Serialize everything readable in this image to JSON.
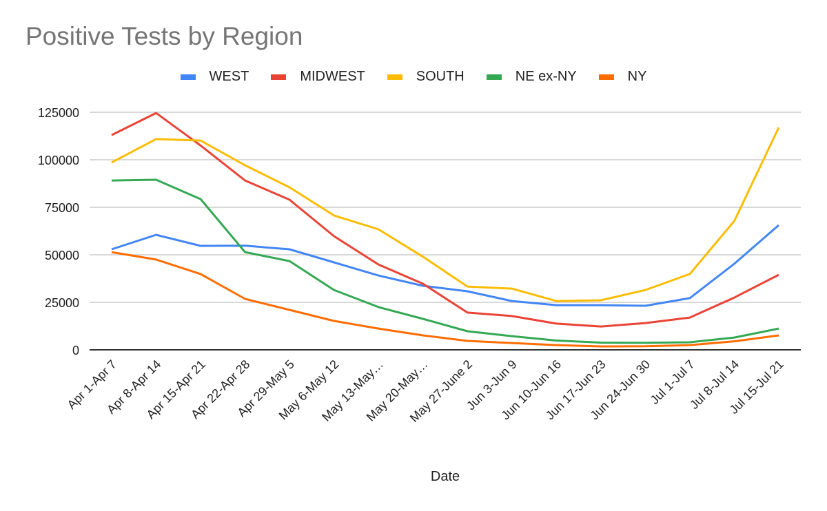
{
  "chart_data": {
    "type": "line",
    "title": "Positive Tests by Region",
    "xlabel": "Date",
    "ylabel": "",
    "ylim": [
      0,
      125000
    ],
    "yticks": [
      0,
      25000,
      50000,
      75000,
      100000,
      125000
    ],
    "ytick_labels": [
      "0",
      "25000",
      "50000",
      "75000",
      "100000",
      "125000"
    ],
    "grid": true,
    "legend_position": "top-center",
    "categories": [
      "Apr 1-Apr 7",
      "Apr 8-Apr 14",
      "Apr 15-Apr 21",
      "Apr 22-Apr 28",
      "Apr 29-May 5",
      "May 6-May 12",
      "May 13-May…",
      "May 20-May…",
      "May 27-June 2",
      "Jun 3-Jun 9",
      "Jun 10-Jun 16",
      "Jun 17-Jun 23",
      "Jun 24-Jun 30",
      "Jul 1-Jul 7",
      "Jul 8-Jul 14",
      "Jul 15-Jul 21"
    ],
    "series": [
      {
        "name": "WEST",
        "color": "#4285f4",
        "values": [
          52900,
          60500,
          54700,
          54800,
          52900,
          46000,
          39100,
          33700,
          30800,
          25700,
          23500,
          23500,
          23200,
          27200,
          45300,
          65600
        ]
      },
      {
        "name": "MIDWEST",
        "color": "#ea4335",
        "values": [
          113000,
          124600,
          107500,
          89100,
          79000,
          59800,
          44900,
          34800,
          19600,
          17800,
          13800,
          12300,
          14100,
          17000,
          27500,
          39500
        ]
      },
      {
        "name": "SOUTH",
        "color": "#fbbc04",
        "values": [
          98600,
          110900,
          110100,
          97100,
          85500,
          70700,
          63400,
          49000,
          33300,
          32200,
          25700,
          26100,
          31500,
          39900,
          67800,
          117000
        ]
      },
      {
        "name": "NE ex-NY",
        "color": "#34a853",
        "values": [
          89100,
          89500,
          79300,
          51400,
          46700,
          31500,
          22500,
          16300,
          9800,
          7200,
          4900,
          3800,
          3700,
          4000,
          6500,
          11200
        ]
      },
      {
        "name": "NY",
        "color": "#ff6d01",
        "values": [
          51400,
          47500,
          39900,
          26800,
          21000,
          15200,
          11200,
          7600,
          4700,
          3600,
          2500,
          1800,
          1900,
          2500,
          4500,
          7600
        ]
      }
    ]
  }
}
